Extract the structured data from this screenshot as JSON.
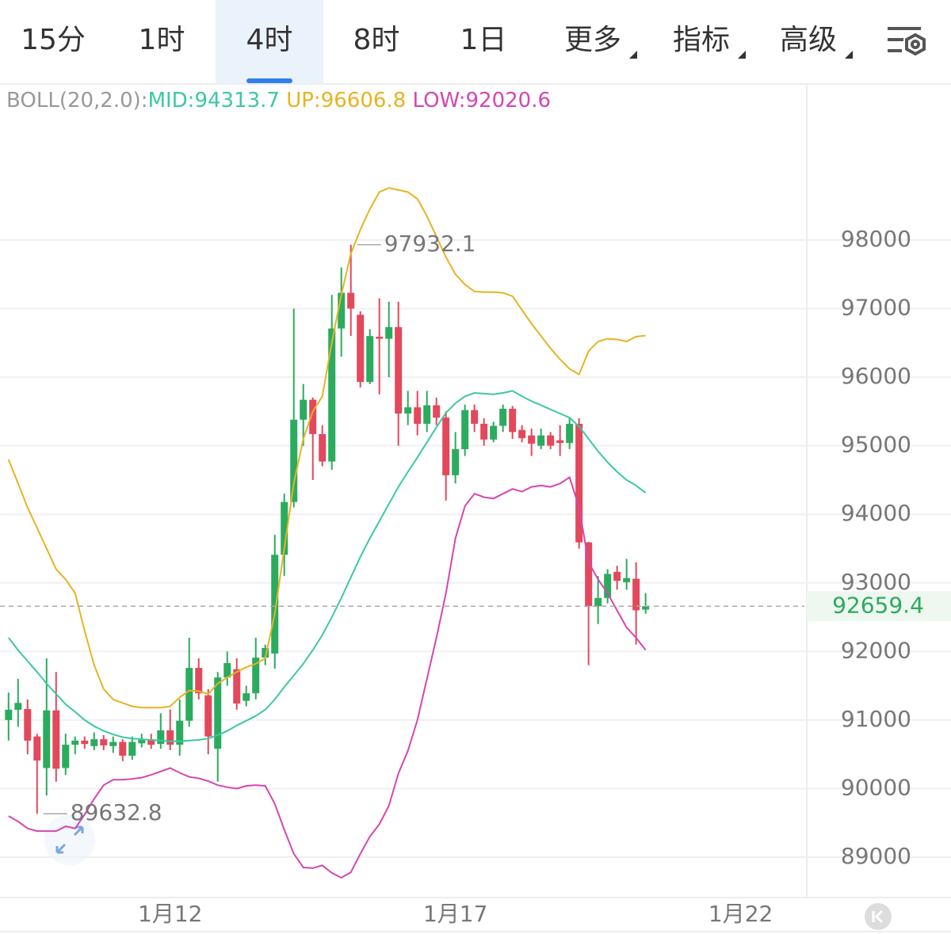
{
  "tabs": [
    "15分",
    "1时",
    "4时",
    "8时",
    "1日",
    "更多",
    "指标",
    "高级"
  ],
  "selected_tab": 2,
  "chart_data": {
    "type": "candlestick",
    "indicator": "BOLL(20,2.0):",
    "open": [
      91000,
      91150,
      91160,
      90760,
      90300,
      91140,
      90300,
      90640,
      90700,
      90620,
      90720,
      90620,
      90680,
      90480,
      90660,
      90720,
      90650,
      90850,
      90640,
      90990,
      91760,
      91360,
      90580,
      91620,
      91740,
      91280,
      91390,
      91910,
      91970,
      93410,
      94180,
      95380,
      95670,
      95170,
      94770,
      96710,
      97230,
      96910,
      95930,
      96590,
      96560,
      96730,
      95470,
      95560,
      95320,
      95590,
      95410,
      94570,
      94950,
      95520,
      95320,
      95090,
      95290,
      95540,
      95230,
      95150,
      95000,
      95150,
      95080,
      95040,
      95320,
      93590,
      92660,
      92780,
      93160,
      93010,
      93060,
      92610
    ],
    "high": [
      91400,
      91600,
      91300,
      90800,
      91900,
      91700,
      90800,
      90760,
      90760,
      90820,
      90780,
      90760,
      90720,
      90760,
      90800,
      90800,
      91100,
      91150,
      91300,
      92200,
      91900,
      91450,
      91700,
      92000,
      91900,
      91500,
      92200,
      92100,
      93700,
      94300,
      97000,
      95900,
      95700,
      95300,
      97200,
      97600,
      97932.1,
      96960,
      96700,
      97150,
      97100,
      97100,
      95800,
      95800,
      95800,
      95700,
      95500,
      95200,
      95600,
      95600,
      95400,
      95350,
      95600,
      95580,
      95300,
      95250,
      95250,
      95200,
      95300,
      95400,
      95400,
      93600,
      93100,
      93200,
      93250,
      93350,
      93300,
      92850
    ],
    "low": [
      90700,
      90900,
      90500,
      89632.8,
      89900,
      90100,
      90200,
      90500,
      90580,
      90560,
      90560,
      90520,
      90400,
      90420,
      90600,
      90580,
      90580,
      90560,
      90480,
      90900,
      91300,
      90500,
      90100,
      91500,
      91150,
      91200,
      91300,
      91800,
      91750,
      93100,
      94100,
      95000,
      94500,
      94700,
      94650,
      96300,
      96600,
      95850,
      95900,
      95750,
      96000,
      95000,
      95300,
      95150,
      95200,
      95300,
      94200,
      94450,
      94850,
      95200,
      95000,
      95050,
      95200,
      95100,
      95050,
      94850,
      94950,
      94950,
      94850,
      94950,
      93500,
      91800,
      92400,
      92700,
      92900,
      92900,
      92100,
      92550
    ],
    "close": [
      91150,
      91250,
      90700,
      90410,
      91140,
      90290,
      90640,
      90700,
      90650,
      90720,
      90630,
      90680,
      90480,
      90680,
      90710,
      90640,
      90850,
      90640,
      90990,
      91760,
      91390,
      90760,
      91620,
      91830,
      91240,
      91390,
      91910,
      92050,
      93410,
      94180,
      95380,
      95670,
      95170,
      94770,
      96710,
      97230,
      97000,
      95930,
      96600,
      96560,
      96730,
      95470,
      95560,
      95320,
      95590,
      95410,
      94570,
      94950,
      95520,
      95320,
      95090,
      95290,
      95540,
      95200,
      95110,
      95030,
      95150,
      95000,
      95040,
      95320,
      93590,
      92660,
      92780,
      93130,
      93030,
      93070,
      92600,
      92659.4
    ],
    "up_color": "#2bab5e",
    "down_color": "#e3485c",
    "series": [
      {
        "name": "MID:",
        "color": "#3cc8a4",
        "values": [
          92200,
          92020,
          91860,
          91700,
          91530,
          91380,
          91230,
          91120,
          91000,
          90910,
          90840,
          90790,
          90750,
          90730,
          90720,
          90710,
          90700,
          90690,
          90690,
          90700,
          90710,
          90730,
          90780,
          90840,
          90920,
          90990,
          91060,
          91150,
          91300,
          91480,
          91650,
          91820,
          92020,
          92240,
          92500,
          92780,
          93080,
          93380,
          93650,
          93900,
          94150,
          94400,
          94620,
          94830,
          95050,
          95270,
          95480,
          95620,
          95720,
          95770,
          95760,
          95750,
          95770,
          95800,
          95720,
          95650,
          95590,
          95530,
          95470,
          95410,
          95280,
          95100,
          94920,
          94760,
          94620,
          94500,
          94420,
          94313.7
        ]
      },
      {
        "name": "UP:",
        "color": "#e6b322",
        "values": [
          94800,
          94450,
          94100,
          93800,
          93500,
          93200,
          93050,
          92850,
          92300,
          91800,
          91450,
          91300,
          91250,
          91200,
          91180,
          91180,
          91180,
          91200,
          91330,
          91430,
          91420,
          91380,
          91530,
          91620,
          91700,
          91770,
          91820,
          91900,
          92550,
          93500,
          94450,
          95100,
          95500,
          95720,
          96500,
          97200,
          97800,
          98150,
          98450,
          98700,
          98760,
          98730,
          98700,
          98600,
          98350,
          98050,
          97750,
          97500,
          97350,
          97250,
          97240,
          97240,
          97230,
          97180,
          96980,
          96780,
          96600,
          96420,
          96260,
          96120,
          96040,
          96380,
          96520,
          96560,
          96550,
          96520,
          96590,
          96606.8
        ]
      },
      {
        "name": "LOW:",
        "color": "#d646b0",
        "values": [
          89600,
          89520,
          89420,
          89380,
          89380,
          89380,
          89450,
          89420,
          89620,
          89850,
          90050,
          90130,
          90130,
          90140,
          90160,
          90200,
          90250,
          90300,
          90230,
          90170,
          90150,
          90110,
          90050,
          90020,
          90000,
          90040,
          90050,
          90040,
          89780,
          89400,
          89050,
          88850,
          88840,
          88880,
          88770,
          88700,
          88780,
          89050,
          89300,
          89480,
          89750,
          90220,
          90550,
          91000,
          91600,
          92200,
          92850,
          93650,
          94120,
          94300,
          94250,
          94230,
          94300,
          94370,
          94330,
          94400,
          94420,
          94400,
          94450,
          94540,
          94100,
          93300,
          93050,
          92850,
          92600,
          92350,
          92200,
          92020.6
        ]
      }
    ],
    "ylim": [
      88411,
      100287
    ],
    "yticks": [
      89000,
      90000,
      91000,
      92000,
      93000,
      94000,
      95000,
      96000,
      97000,
      98000
    ],
    "xlim": [
      -0.9,
      83.7
    ],
    "xticks": [
      {
        "value": 17,
        "label": "1月12"
      },
      {
        "value": 47,
        "label": "1月17"
      },
      {
        "value": 77,
        "label": "1月22"
      }
    ],
    "grid": true
  }
}
